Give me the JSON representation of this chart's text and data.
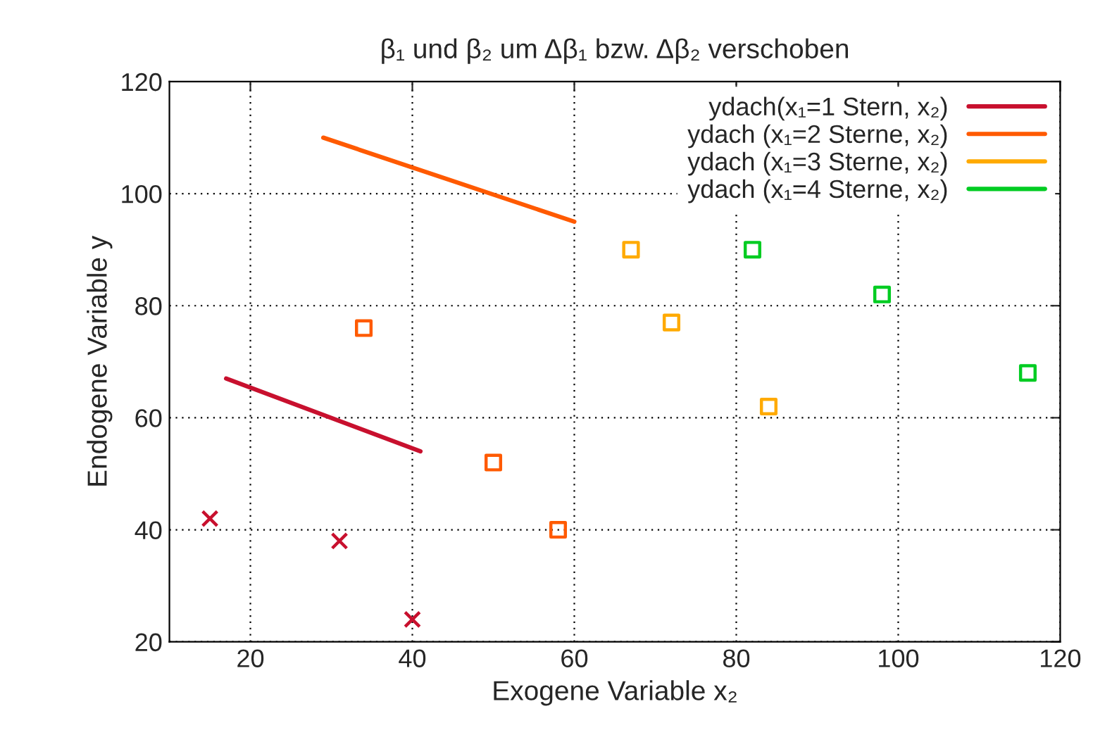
{
  "chart_data": {
    "type": "scatter",
    "title": "β₁ und β₂ um Δβ₁ bzw. Δβ₂ verschoben",
    "xlabel": "Exogene Variable x₂",
    "ylabel": "Endogene Variable y",
    "xlim": [
      10,
      120
    ],
    "ylim": [
      20,
      120
    ],
    "xticks": [
      20,
      40,
      60,
      80,
      100,
      120
    ],
    "yticks": [
      20,
      40,
      60,
      80,
      100,
      120
    ],
    "grid": true,
    "legend": "top right",
    "series": [
      {
        "name": "ydach(x₁=1 Stern, x₂)",
        "type": "line",
        "color": "#c8102e",
        "x": [
          17,
          41
        ],
        "values": [
          67,
          54
        ]
      },
      {
        "name": "ydach (x₁=2 Sterne, x₂)",
        "type": "line",
        "color": "#ff5a00",
        "x": [
          29,
          60
        ],
        "values": [
          110,
          95
        ]
      },
      {
        "name": "ydach (x₁=3 Sterne, x₂)",
        "type": "line",
        "color": "#ffaa00"
      },
      {
        "name": "ydach (x₁=4 Sterne, x₂)",
        "type": "line",
        "color": "#00cc22"
      },
      {
        "color": "#c8102e",
        "x": [
          15,
          31,
          40
        ],
        "values": [
          42,
          38,
          24
        ],
        "marker": "cross"
      },
      {
        "color": "#ff5a00",
        "x": [
          34,
          50,
          58
        ],
        "values": [
          76,
          52,
          40
        ],
        "marker": "square"
      },
      {
        "color": "#ffaa00",
        "x": [
          67,
          72,
          84
        ],
        "values": [
          90,
          77,
          62
        ],
        "marker": "square"
      },
      {
        "color": "#00cc22",
        "x": [
          82,
          98,
          116
        ],
        "values": [
          90,
          82,
          68
        ],
        "marker": "square"
      }
    ]
  }
}
